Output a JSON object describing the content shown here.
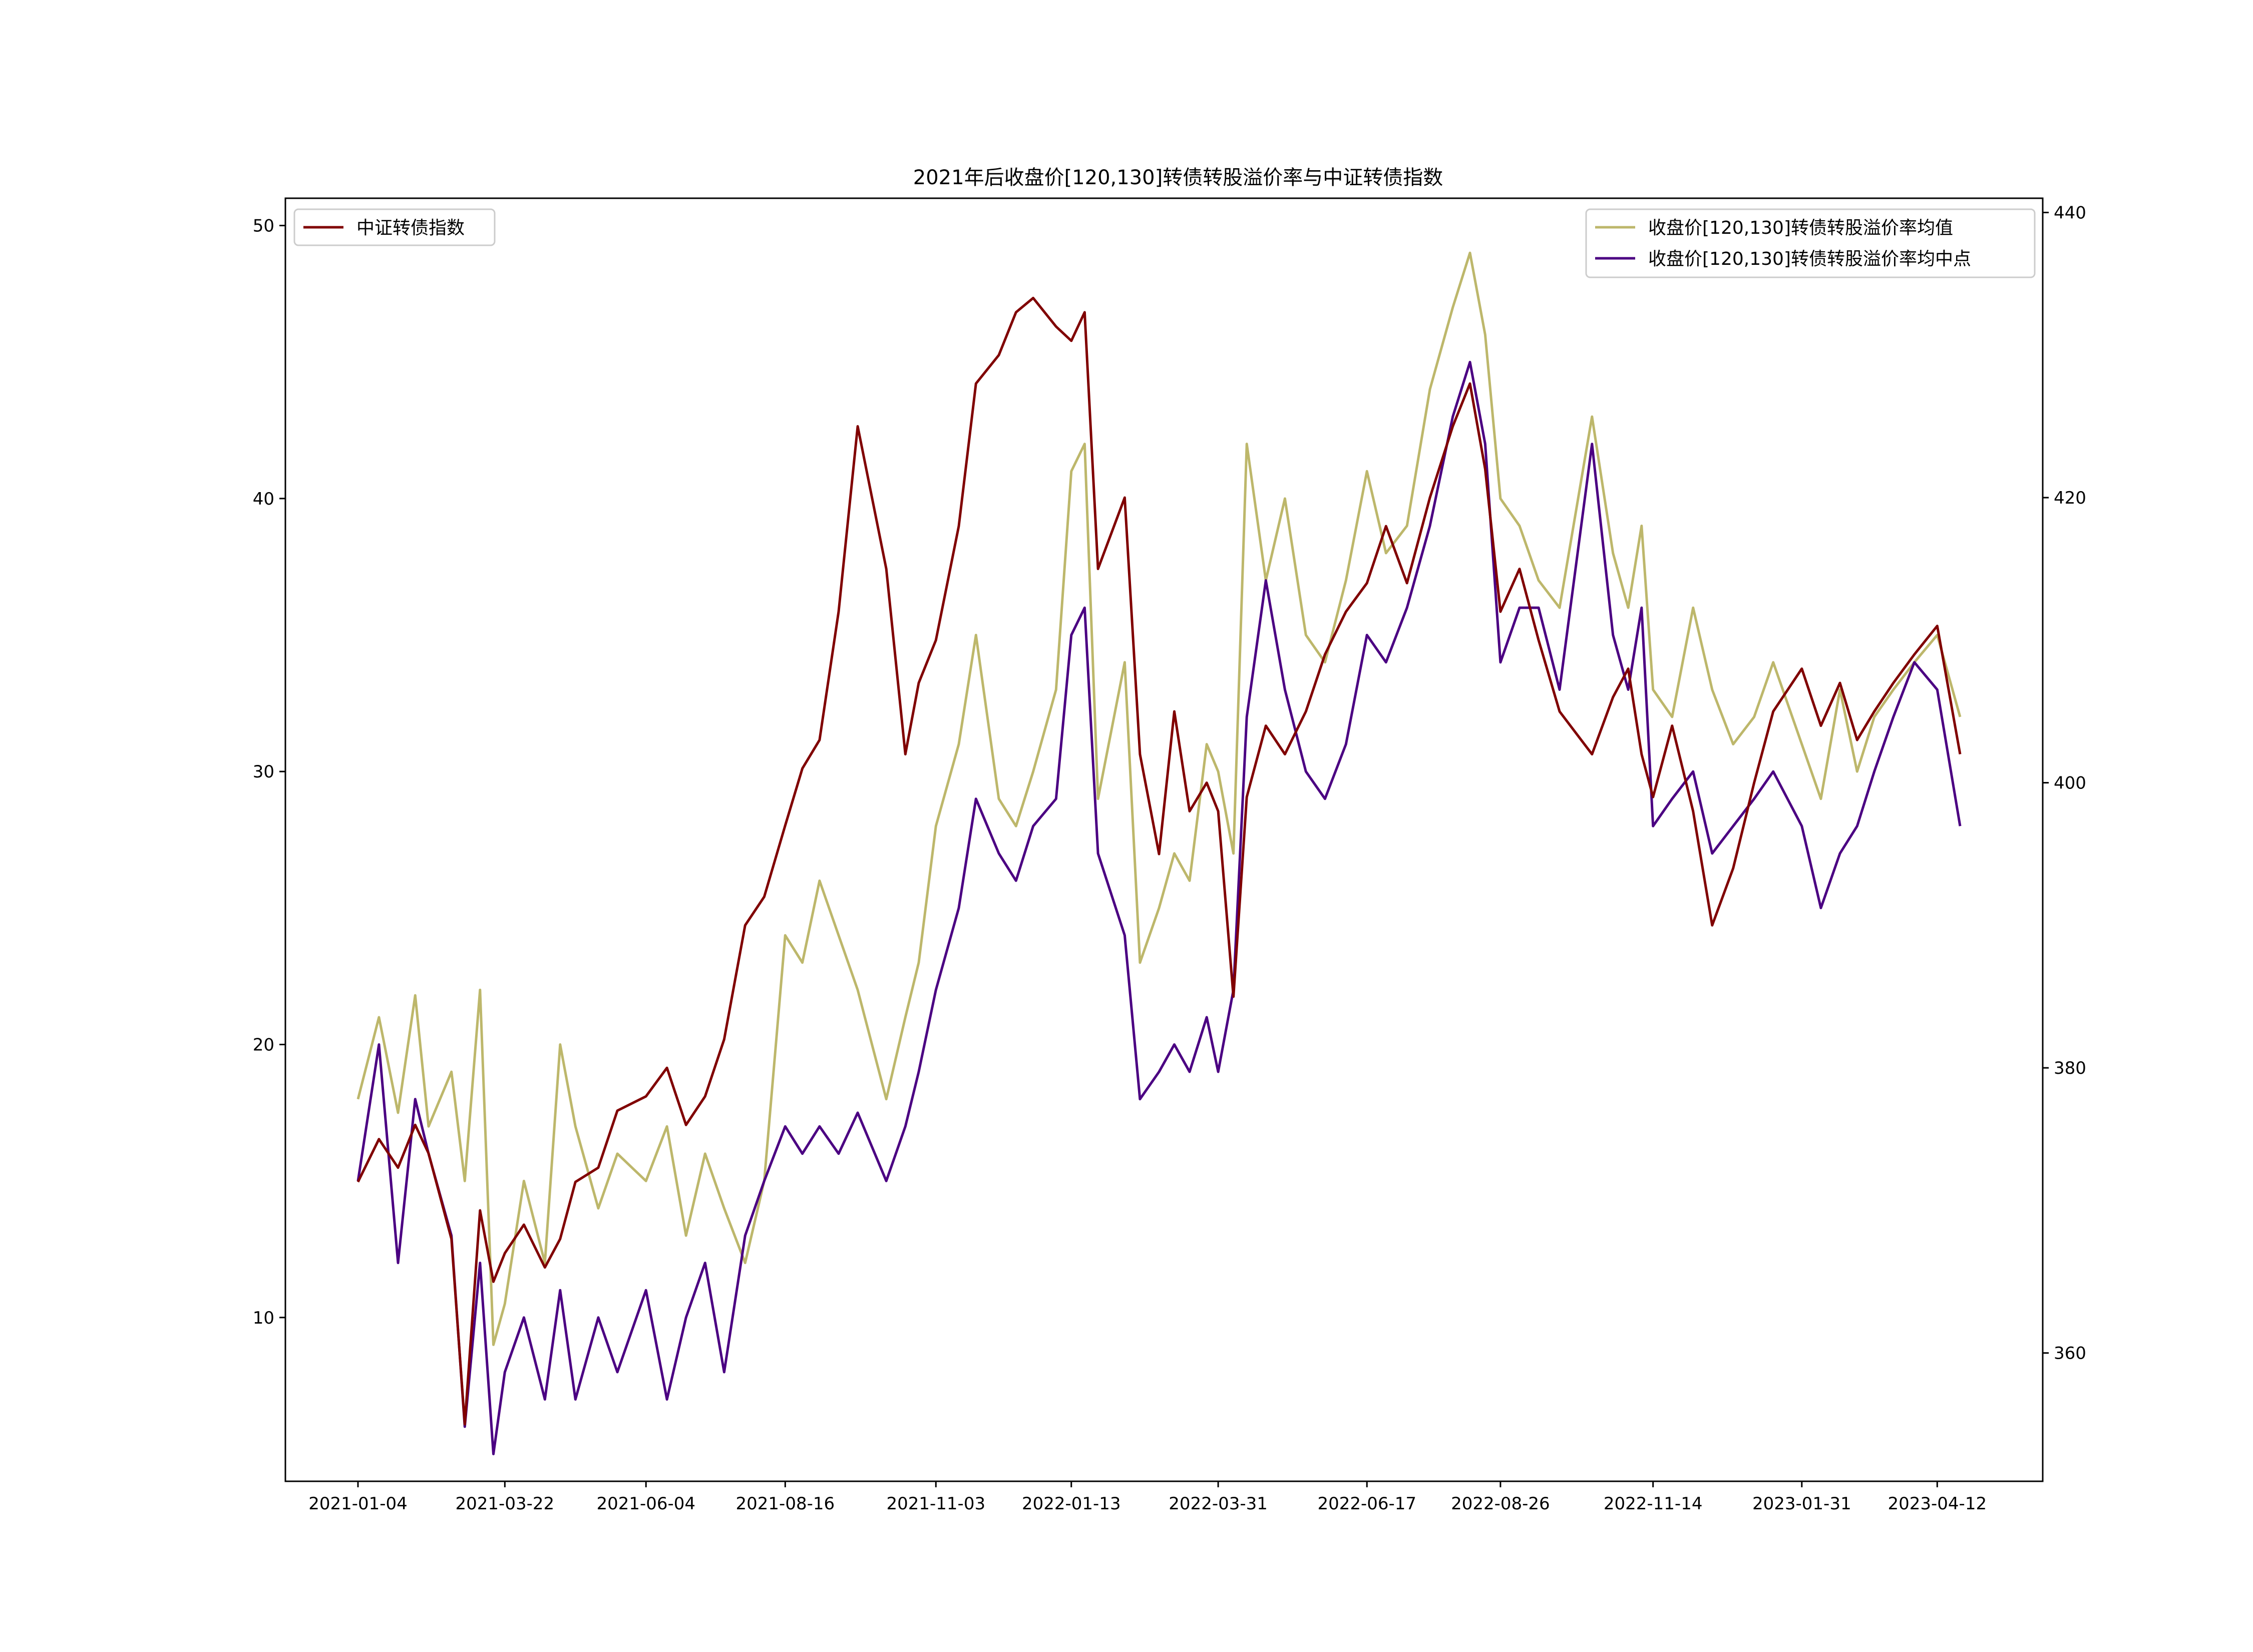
{
  "chart_data": {
    "type": "line",
    "title": "2021年后收盘价[120,130]转债转股溢价率与中证转债指数",
    "x_ticks": [
      "2021-01-04",
      "2021-03-22",
      "2021-06-04",
      "2021-08-16",
      "2021-11-03",
      "2022-01-13",
      "2022-03-31",
      "2022-06-17",
      "2022-08-26",
      "2022-11-14",
      "2023-01-31",
      "2023-04-12"
    ],
    "x_range": [
      "2021-01-04",
      "2023-04-24"
    ],
    "left_axis": {
      "ylim": [
        4,
        51
      ],
      "ticks": [
        10,
        20,
        30,
        40,
        50
      ]
    },
    "right_axis": {
      "ylim": [
        351,
        441
      ],
      "ticks": [
        360,
        380,
        400,
        420,
        440
      ]
    },
    "legend_left": {
      "position": "upper-left",
      "entries": [
        "中证转债指数"
      ]
    },
    "legend_right": {
      "position": "upper-right",
      "entries": [
        "收盘价[120,130]转债转股溢价率均值",
        "收盘价[120,130]转债转股溢价率均中点"
      ]
    },
    "colors": {
      "index": "#800000",
      "mean": "#bdb76b",
      "median": "#4b0082"
    },
    "series": [
      {
        "name": "收盘价[120,130]转债转股溢价率均值",
        "axis": "left",
        "color": "#bdb76b",
        "points": [
          [
            "2021-01-04",
            18.0
          ],
          [
            "2021-01-15",
            21.0
          ],
          [
            "2021-01-25",
            17.5
          ],
          [
            "2021-02-03",
            21.8
          ],
          [
            "2021-02-10",
            17.0
          ],
          [
            "2021-02-22",
            19.0
          ],
          [
            "2021-03-01",
            15.0
          ],
          [
            "2021-03-09",
            22.0
          ],
          [
            "2021-03-16",
            9.0
          ],
          [
            "2021-03-22",
            10.5
          ],
          [
            "2021-04-01",
            15.0
          ],
          [
            "2021-04-12",
            12.0
          ],
          [
            "2021-04-20",
            20.0
          ],
          [
            "2021-04-28",
            17.0
          ],
          [
            "2021-05-10",
            14.0
          ],
          [
            "2021-05-20",
            16.0
          ],
          [
            "2021-06-04",
            15.0
          ],
          [
            "2021-06-15",
            17.0
          ],
          [
            "2021-06-25",
            13.0
          ],
          [
            "2021-07-05",
            16.0
          ],
          [
            "2021-07-15",
            14.0
          ],
          [
            "2021-07-26",
            12.0
          ],
          [
            "2021-08-05",
            15.0
          ],
          [
            "2021-08-16",
            24.0
          ],
          [
            "2021-08-25",
            23.0
          ],
          [
            "2021-09-03",
            26.0
          ],
          [
            "2021-09-13",
            24.0
          ],
          [
            "2021-09-23",
            22.0
          ],
          [
            "2021-10-08",
            18.0
          ],
          [
            "2021-10-18",
            21.0
          ],
          [
            "2021-10-25",
            23.0
          ],
          [
            "2021-11-03",
            28.0
          ],
          [
            "2021-11-15",
            31.0
          ],
          [
            "2021-11-24",
            35.0
          ],
          [
            "2021-12-06",
            29.0
          ],
          [
            "2021-12-15",
            28.0
          ],
          [
            "2021-12-24",
            30.0
          ],
          [
            "2022-01-05",
            33.0
          ],
          [
            "2022-01-13",
            41.0
          ],
          [
            "2022-01-20",
            42.0
          ],
          [
            "2022-01-27",
            29.0
          ],
          [
            "2022-02-10",
            34.0
          ],
          [
            "2022-02-18",
            23.0
          ],
          [
            "2022-02-28",
            25.0
          ],
          [
            "2022-03-08",
            27.0
          ],
          [
            "2022-03-16",
            26.0
          ],
          [
            "2022-03-25",
            31.0
          ],
          [
            "2022-03-31",
            30.0
          ],
          [
            "2022-04-08",
            27.0
          ],
          [
            "2022-04-15",
            42.0
          ],
          [
            "2022-04-25",
            37.0
          ],
          [
            "2022-05-05",
            40.0
          ],
          [
            "2022-05-16",
            35.0
          ],
          [
            "2022-05-26",
            34.0
          ],
          [
            "2022-06-06",
            37.0
          ],
          [
            "2022-06-17",
            41.0
          ],
          [
            "2022-06-27",
            38.0
          ],
          [
            "2022-07-08",
            39.0
          ],
          [
            "2022-07-20",
            44.0
          ],
          [
            "2022-08-01",
            47.0
          ],
          [
            "2022-08-10",
            49.0
          ],
          [
            "2022-08-18",
            46.0
          ],
          [
            "2022-08-26",
            40.0
          ],
          [
            "2022-09-05",
            39.0
          ],
          [
            "2022-09-15",
            37.0
          ],
          [
            "2022-09-26",
            36.0
          ],
          [
            "2022-10-13",
            43.0
          ],
          [
            "2022-10-24",
            38.0
          ],
          [
            "2022-11-01",
            36.0
          ],
          [
            "2022-11-08",
            39.0
          ],
          [
            "2022-11-14",
            33.0
          ],
          [
            "2022-11-24",
            32.0
          ],
          [
            "2022-12-05",
            36.0
          ],
          [
            "2022-12-15",
            33.0
          ],
          [
            "2022-12-26",
            31.0
          ],
          [
            "2023-01-06",
            32.0
          ],
          [
            "2023-01-16",
            34.0
          ],
          [
            "2023-01-31",
            31.0
          ],
          [
            "2023-02-10",
            29.0
          ],
          [
            "2023-02-20",
            33.0
          ],
          [
            "2023-03-01",
            30.0
          ],
          [
            "2023-03-10",
            32.0
          ],
          [
            "2023-03-20",
            33.0
          ],
          [
            "2023-03-31",
            34.0
          ],
          [
            "2023-04-12",
            35.0
          ],
          [
            "2023-04-24",
            32.0
          ]
        ]
      },
      {
        "name": "收盘价[120,130]转债转股溢价率均中点",
        "axis": "left",
        "color": "#4b0082",
        "points": [
          [
            "2021-01-04",
            15.0
          ],
          [
            "2021-01-15",
            20.0
          ],
          [
            "2021-01-25",
            12.0
          ],
          [
            "2021-02-03",
            18.0
          ],
          [
            "2021-02-10",
            16.0
          ],
          [
            "2021-02-22",
            13.0
          ],
          [
            "2021-03-01",
            6.0
          ],
          [
            "2021-03-09",
            12.0
          ],
          [
            "2021-03-16",
            5.0
          ],
          [
            "2021-03-22",
            8.0
          ],
          [
            "2021-04-01",
            10.0
          ],
          [
            "2021-04-12",
            7.0
          ],
          [
            "2021-04-20",
            11.0
          ],
          [
            "2021-04-28",
            7.0
          ],
          [
            "2021-05-10",
            10.0
          ],
          [
            "2021-05-20",
            8.0
          ],
          [
            "2021-06-04",
            11.0
          ],
          [
            "2021-06-15",
            7.0
          ],
          [
            "2021-06-25",
            10.0
          ],
          [
            "2021-07-05",
            12.0
          ],
          [
            "2021-07-15",
            8.0
          ],
          [
            "2021-07-26",
            13.0
          ],
          [
            "2021-08-05",
            15.0
          ],
          [
            "2021-08-16",
            17.0
          ],
          [
            "2021-08-25",
            16.0
          ],
          [
            "2021-09-03",
            17.0
          ],
          [
            "2021-09-13",
            16.0
          ],
          [
            "2021-09-23",
            17.5
          ],
          [
            "2021-10-08",
            15.0
          ],
          [
            "2021-10-18",
            17.0
          ],
          [
            "2021-10-25",
            19.0
          ],
          [
            "2021-11-03",
            22.0
          ],
          [
            "2021-11-15",
            25.0
          ],
          [
            "2021-11-24",
            29.0
          ],
          [
            "2021-12-06",
            27.0
          ],
          [
            "2021-12-15",
            26.0
          ],
          [
            "2021-12-24",
            28.0
          ],
          [
            "2022-01-05",
            29.0
          ],
          [
            "2022-01-13",
            35.0
          ],
          [
            "2022-01-20",
            36.0
          ],
          [
            "2022-01-27",
            27.0
          ],
          [
            "2022-02-10",
            24.0
          ],
          [
            "2022-02-18",
            18.0
          ],
          [
            "2022-02-28",
            19.0
          ],
          [
            "2022-03-08",
            20.0
          ],
          [
            "2022-03-16",
            19.0
          ],
          [
            "2022-03-25",
            21.0
          ],
          [
            "2022-03-31",
            19.0
          ],
          [
            "2022-04-08",
            22.0
          ],
          [
            "2022-04-15",
            32.0
          ],
          [
            "2022-04-25",
            37.0
          ],
          [
            "2022-05-05",
            33.0
          ],
          [
            "2022-05-16",
            30.0
          ],
          [
            "2022-05-26",
            29.0
          ],
          [
            "2022-06-06",
            31.0
          ],
          [
            "2022-06-17",
            35.0
          ],
          [
            "2022-06-27",
            34.0
          ],
          [
            "2022-07-08",
            36.0
          ],
          [
            "2022-07-20",
            39.0
          ],
          [
            "2022-08-01",
            43.0
          ],
          [
            "2022-08-10",
            45.0
          ],
          [
            "2022-08-18",
            42.0
          ],
          [
            "2022-08-26",
            34.0
          ],
          [
            "2022-09-05",
            36.0
          ],
          [
            "2022-09-15",
            36.0
          ],
          [
            "2022-09-26",
            33.0
          ],
          [
            "2022-10-13",
            42.0
          ],
          [
            "2022-10-24",
            35.0
          ],
          [
            "2022-11-01",
            33.0
          ],
          [
            "2022-11-08",
            36.0
          ],
          [
            "2022-11-14",
            28.0
          ],
          [
            "2022-11-24",
            29.0
          ],
          [
            "2022-12-05",
            30.0
          ],
          [
            "2022-12-15",
            27.0
          ],
          [
            "2022-12-26",
            28.0
          ],
          [
            "2023-01-06",
            29.0
          ],
          [
            "2023-01-16",
            30.0
          ],
          [
            "2023-01-31",
            28.0
          ],
          [
            "2023-02-10",
            25.0
          ],
          [
            "2023-02-20",
            27.0
          ],
          [
            "2023-03-01",
            28.0
          ],
          [
            "2023-03-10",
            30.0
          ],
          [
            "2023-03-20",
            32.0
          ],
          [
            "2023-03-31",
            34.0
          ],
          [
            "2023-04-12",
            33.0
          ],
          [
            "2023-04-24",
            28.0
          ]
        ]
      },
      {
        "name": "中证转债指数",
        "axis": "right",
        "color": "#800000",
        "points": [
          [
            "2021-01-04",
            372.0
          ],
          [
            "2021-01-15",
            375.0
          ],
          [
            "2021-01-25",
            373.0
          ],
          [
            "2021-02-03",
            376.0
          ],
          [
            "2021-02-10",
            374.0
          ],
          [
            "2021-02-22",
            368.0
          ],
          [
            "2021-03-01",
            355.0
          ],
          [
            "2021-03-09",
            370.0
          ],
          [
            "2021-03-16",
            365.0
          ],
          [
            "2021-03-22",
            367.0
          ],
          [
            "2021-04-01",
            369.0
          ],
          [
            "2021-04-12",
            366.0
          ],
          [
            "2021-04-20",
            368.0
          ],
          [
            "2021-04-28",
            372.0
          ],
          [
            "2021-05-10",
            373.0
          ],
          [
            "2021-05-20",
            377.0
          ],
          [
            "2021-06-04",
            378.0
          ],
          [
            "2021-06-15",
            380.0
          ],
          [
            "2021-06-25",
            376.0
          ],
          [
            "2021-07-05",
            378.0
          ],
          [
            "2021-07-15",
            382.0
          ],
          [
            "2021-07-26",
            390.0
          ],
          [
            "2021-08-05",
            392.0
          ],
          [
            "2021-08-16",
            397.0
          ],
          [
            "2021-08-25",
            401.0
          ],
          [
            "2021-09-03",
            403.0
          ],
          [
            "2021-09-13",
            412.0
          ],
          [
            "2021-09-23",
            425.0
          ],
          [
            "2021-10-08",
            415.0
          ],
          [
            "2021-10-18",
            402.0
          ],
          [
            "2021-10-25",
            407.0
          ],
          [
            "2021-11-03",
            410.0
          ],
          [
            "2021-11-15",
            418.0
          ],
          [
            "2021-11-24",
            428.0
          ],
          [
            "2021-12-06",
            430.0
          ],
          [
            "2021-12-15",
            433.0
          ],
          [
            "2021-12-24",
            434.0
          ],
          [
            "2022-01-05",
            432.0
          ],
          [
            "2022-01-13",
            431.0
          ],
          [
            "2022-01-20",
            433.0
          ],
          [
            "2022-01-27",
            415.0
          ],
          [
            "2022-02-10",
            420.0
          ],
          [
            "2022-02-18",
            402.0
          ],
          [
            "2022-02-28",
            395.0
          ],
          [
            "2022-03-08",
            405.0
          ],
          [
            "2022-03-16",
            398.0
          ],
          [
            "2022-03-25",
            400.0
          ],
          [
            "2022-03-31",
            398.0
          ],
          [
            "2022-04-08",
            385.0
          ],
          [
            "2022-04-15",
            399.0
          ],
          [
            "2022-04-25",
            404.0
          ],
          [
            "2022-05-05",
            402.0
          ],
          [
            "2022-05-16",
            405.0
          ],
          [
            "2022-05-26",
            409.0
          ],
          [
            "2022-06-06",
            412.0
          ],
          [
            "2022-06-17",
            414.0
          ],
          [
            "2022-06-27",
            418.0
          ],
          [
            "2022-07-08",
            414.0
          ],
          [
            "2022-07-20",
            420.0
          ],
          [
            "2022-08-01",
            425.0
          ],
          [
            "2022-08-10",
            428.0
          ],
          [
            "2022-08-18",
            422.0
          ],
          [
            "2022-08-26",
            412.0
          ],
          [
            "2022-09-05",
            415.0
          ],
          [
            "2022-09-15",
            410.0
          ],
          [
            "2022-09-26",
            405.0
          ],
          [
            "2022-10-13",
            402.0
          ],
          [
            "2022-10-24",
            406.0
          ],
          [
            "2022-11-01",
            408.0
          ],
          [
            "2022-11-08",
            402.0
          ],
          [
            "2022-11-14",
            399.0
          ],
          [
            "2022-11-24",
            404.0
          ],
          [
            "2022-12-05",
            398.0
          ],
          [
            "2022-12-15",
            390.0
          ],
          [
            "2022-12-26",
            394.0
          ],
          [
            "2023-01-06",
            400.0
          ],
          [
            "2023-01-16",
            405.0
          ],
          [
            "2023-01-31",
            408.0
          ],
          [
            "2023-02-10",
            404.0
          ],
          [
            "2023-02-20",
            407.0
          ],
          [
            "2023-03-01",
            403.0
          ],
          [
            "2023-03-10",
            405.0
          ],
          [
            "2023-03-20",
            407.0
          ],
          [
            "2023-03-31",
            409.0
          ],
          [
            "2023-04-12",
            411.0
          ],
          [
            "2023-04-24",
            402.0
          ]
        ]
      }
    ]
  }
}
